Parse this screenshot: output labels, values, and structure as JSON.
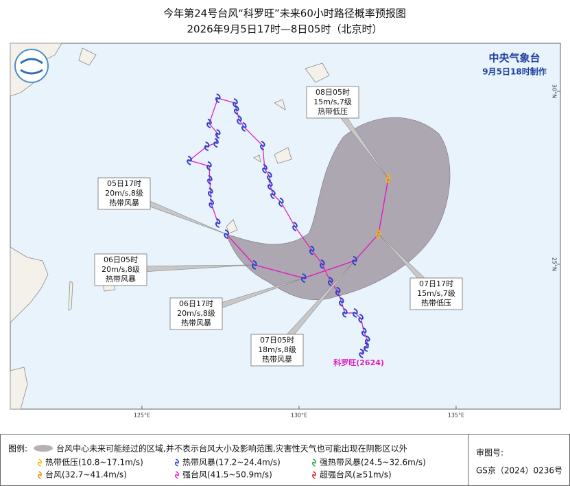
{
  "header": {
    "title": "今年第24号台风“科罗旺”未来60小时路径概率预报图",
    "subtitle": "2026年9月5日17时—8日05时（北京时）"
  },
  "agency": {
    "name": "中央气象台",
    "issued": "9月5日18时制作"
  },
  "map": {
    "lonlim": [
      120.81,
      138.32
    ],
    "latlim": [
      20.81,
      31.39
    ],
    "lon_ticks": [
      {
        "value": 125,
        "label": "125°E"
      },
      {
        "value": 130,
        "label": "130°E"
      },
      {
        "value": 135,
        "label": "135°E"
      }
    ],
    "lat_ticks": [
      {
        "value": 30,
        "label": "30°N"
      },
      {
        "value": 25,
        "label": "25°N"
      }
    ]
  },
  "storm": {
    "name": "科罗旺(2624)",
    "color": "#e020c0"
  },
  "past_track": {
    "color": "#2b3fc7",
    "line_color": "#e020c0",
    "lon": [
      131.99,
      132.14,
      132.18,
      132.07,
      131.97,
      131.79,
      131.46,
      131.35,
      131.24,
      131.0,
      130.74,
      130.41,
      129.87,
      129.43,
      129.17,
      129.08,
      129.06,
      128.91,
      128.84,
      128.25,
      128.1,
      128.01,
      127.97,
      127.42,
      127.14,
      127.42,
      127.36,
      127.07,
      126.51,
      127.14,
      127.16,
      127.18,
      127.21,
      127.42
    ],
    "lat": [
      22.42,
      22.6,
      22.8,
      23.04,
      23.43,
      23.59,
      23.59,
      23.91,
      24.21,
      24.5,
      25.0,
      25.4,
      26.09,
      26.79,
      27.02,
      27.28,
      27.54,
      27.76,
      28.43,
      28.97,
      29.17,
      29.46,
      29.66,
      29.8,
      29.07,
      28.77,
      28.51,
      28.41,
      28.0,
      27.84,
      27.44,
      27.08,
      26.75,
      26.19
    ]
  },
  "forecast": {
    "line_color": "#e020c0",
    "points": [
      {
        "time": "05日17时",
        "wind": "20m/s,8级",
        "level": "热带风暴",
        "lon": 127.69,
        "lat": 25.87,
        "color": "#2b3fc7"
      },
      {
        "time": "06日05时",
        "wind": "20m/s,8级",
        "level": "热带风暴",
        "lon": 128.58,
        "lat": 24.98,
        "color": "#2b3fc7"
      },
      {
        "time": "06日17时",
        "wind": "20m/s,8级",
        "level": "热带风暴",
        "lon": 130.15,
        "lat": 24.6,
        "color": "#2b3fc7"
      },
      {
        "time": "07日05时",
        "wind": "18m/s,8级",
        "level": "热带风暴",
        "lon": 131.77,
        "lat": 25.1,
        "color": "#2b3fc7"
      },
      {
        "time": "07日17时",
        "wind": "15m/s,7级",
        "level": "热带低压",
        "lon": 132.53,
        "lat": 25.87,
        "color": "#f5b800"
      },
      {
        "time": "08日05时",
        "wind": "15m/s,7级",
        "level": "热带低压",
        "lon": 132.84,
        "lat": 27.48,
        "color": "#f5b800"
      }
    ]
  },
  "legend": {
    "title": "图例:",
    "cone": "台风中心未来可能经过的区域,并不表示台风大小及影响范围,灾害性天气也可能出现在阴影区以外",
    "items": [
      {
        "label": "热带低压(10.8~17.1m/s)",
        "color": "#f5b800"
      },
      {
        "label": "热带风暴(17.2~24.4m/s)",
        "color": "#2b3fc7"
      },
      {
        "label": "强热带风暴(24.5~32.6m/s)",
        "color": "#2a9d3a"
      },
      {
        "label": "台风(32.7~41.4m/s)",
        "color": "#f08a00"
      },
      {
        "label": "强台风(41.5~50.9m/s)",
        "color": "#e020c0"
      },
      {
        "label": "超强台风(≥51m/s)",
        "color": "#e0202a"
      }
    ]
  },
  "approval": {
    "label": "审图号:",
    "number": "GS京（2024）0236号"
  }
}
